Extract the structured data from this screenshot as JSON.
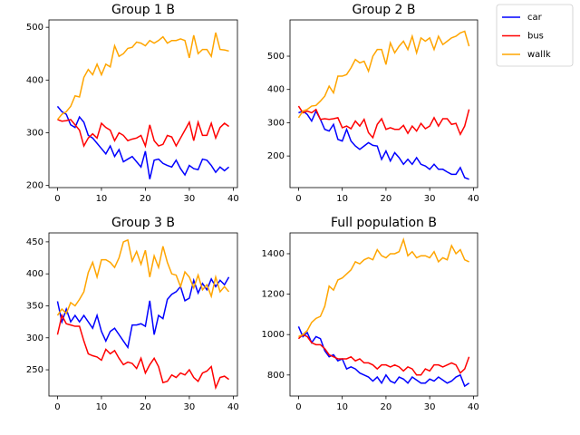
{
  "chart_data": [
    {
      "type": "line",
      "title": "Group 1 B",
      "legend": "outside upper right",
      "x": [
        0,
        1,
        2,
        3,
        4,
        5,
        6,
        7,
        8,
        9,
        10,
        11,
        12,
        13,
        14,
        15,
        16,
        17,
        18,
        19,
        20,
        21,
        22,
        23,
        24,
        25,
        26,
        27,
        28,
        29,
        30,
        31,
        32,
        33,
        34,
        35,
        36,
        37,
        38,
        39
      ],
      "xlim": [
        -1.95,
        40.95
      ],
      "xticks": [
        0,
        10,
        20,
        30,
        40
      ],
      "ylim": [
        196,
        514
      ],
      "yticks": [
        200,
        300,
        400,
        500
      ],
      "series": [
        {
          "name": "car",
          "color": "#0000ff",
          "values": [
            350,
            340,
            335,
            315,
            310,
            330,
            320,
            295,
            290,
            280,
            270,
            260,
            275,
            255,
            268,
            245,
            250,
            255,
            245,
            235,
            265,
            212,
            248,
            250,
            242,
            238,
            235,
            248,
            232,
            220,
            238,
            232,
            230,
            250,
            248,
            238,
            225,
            235,
            228,
            235
          ]
        },
        {
          "name": "bus",
          "color": "#ff0000",
          "values": [
            325,
            322,
            323,
            325,
            315,
            305,
            275,
            290,
            298,
            290,
            318,
            310,
            305,
            285,
            300,
            295,
            285,
            288,
            290,
            295,
            275,
            315,
            285,
            275,
            278,
            295,
            292,
            275,
            290,
            305,
            320,
            285,
            320,
            295,
            295,
            318,
            290,
            310,
            318,
            312
          ]
        },
        {
          "name": "wallk",
          "color": "#ffa500",
          "values": [
            325,
            335,
            340,
            350,
            370,
            368,
            405,
            420,
            410,
            430,
            410,
            430,
            425,
            465,
            445,
            450,
            460,
            462,
            472,
            470,
            465,
            475,
            470,
            475,
            482,
            470,
            475,
            475,
            478,
            475,
            442,
            485,
            450,
            458,
            458,
            445,
            490,
            458,
            457,
            455
          ]
        }
      ]
    },
    {
      "type": "line",
      "title": "Group 2 B",
      "x": [
        0,
        1,
        2,
        3,
        4,
        5,
        6,
        7,
        8,
        9,
        10,
        11,
        12,
        13,
        14,
        15,
        16,
        17,
        18,
        19,
        20,
        21,
        22,
        23,
        24,
        25,
        26,
        27,
        28,
        29,
        30,
        31,
        32,
        33,
        34,
        35,
        36,
        37,
        38,
        39
      ],
      "xlim": [
        -1.95,
        40.95
      ],
      "xticks": [
        0,
        10,
        20,
        30,
        40
      ],
      "ylim": [
        105,
        609
      ],
      "yticks": [
        200,
        300,
        400,
        500
      ],
      "series": [
        {
          "color": "#0000ff",
          "values": [
            330,
            335,
            325,
            305,
            335,
            310,
            280,
            275,
            295,
            250,
            245,
            280,
            245,
            230,
            220,
            230,
            240,
            232,
            230,
            190,
            215,
            185,
            210,
            195,
            175,
            190,
            175,
            195,
            175,
            170,
            160,
            175,
            160,
            160,
            152,
            145,
            145,
            165,
            135,
            130
          ]
        },
        {
          "color": "#ff0000",
          "values": [
            350,
            330,
            335,
            330,
            340,
            310,
            312,
            310,
            312,
            315,
            285,
            290,
            282,
            305,
            290,
            310,
            270,
            255,
            295,
            312,
            280,
            285,
            280,
            280,
            292,
            268,
            290,
            275,
            298,
            282,
            290,
            315,
            290,
            312,
            312,
            295,
            298,
            265,
            290,
            340
          ]
        },
        {
          "color": "#ffa500",
          "values": [
            315,
            335,
            340,
            350,
            352,
            365,
            380,
            410,
            390,
            440,
            440,
            445,
            465,
            490,
            480,
            485,
            455,
            500,
            520,
            520,
            475,
            540,
            510,
            530,
            545,
            520,
            560,
            510,
            555,
            545,
            555,
            520,
            560,
            535,
            545,
            555,
            560,
            570,
            575,
            530
          ]
        }
      ]
    },
    {
      "type": "line",
      "title": "Group 3 B",
      "x": [
        0,
        1,
        2,
        3,
        4,
        5,
        6,
        7,
        8,
        9,
        10,
        11,
        12,
        13,
        14,
        15,
        16,
        17,
        18,
        19,
        20,
        21,
        22,
        23,
        24,
        25,
        26,
        27,
        28,
        29,
        30,
        31,
        32,
        33,
        34,
        35,
        36,
        37,
        38,
        39
      ],
      "xlim": [
        -1.95,
        40.95
      ],
      "xticks": [
        0,
        10,
        20,
        30,
        40
      ],
      "ylim": [
        209,
        464
      ],
      "yticks": [
        250,
        300,
        350,
        400,
        450
      ],
      "series": [
        {
          "color": "#0000ff",
          "values": [
            357,
            325,
            345,
            325,
            335,
            325,
            335,
            325,
            315,
            335,
            310,
            295,
            310,
            315,
            305,
            295,
            285,
            320,
            320,
            322,
            318,
            358,
            305,
            335,
            330,
            360,
            368,
            372,
            380,
            358,
            362,
            390,
            370,
            385,
            375,
            392,
            380,
            390,
            383,
            395
          ]
        },
        {
          "color": "#ff0000",
          "values": [
            305,
            335,
            322,
            320,
            318,
            318,
            295,
            275,
            272,
            270,
            265,
            282,
            275,
            280,
            268,
            258,
            262,
            260,
            252,
            268,
            245,
            258,
            268,
            255,
            230,
            232,
            242,
            238,
            245,
            242,
            250,
            238,
            232,
            245,
            248,
            255,
            222,
            238,
            240,
            235
          ]
        },
        {
          "color": "#ffa500",
          "values": [
            335,
            345,
            338,
            355,
            350,
            360,
            372,
            402,
            418,
            395,
            422,
            422,
            418,
            410,
            425,
            450,
            453,
            420,
            435,
            415,
            437,
            395,
            428,
            410,
            443,
            418,
            400,
            398,
            380,
            403,
            395,
            378,
            398,
            375,
            383,
            365,
            395,
            372,
            380,
            372
          ]
        }
      ]
    },
    {
      "type": "line",
      "title": "Full population B",
      "x": [
        0,
        1,
        2,
        3,
        4,
        5,
        6,
        7,
        8,
        9,
        10,
        11,
        12,
        13,
        14,
        15,
        16,
        17,
        18,
        19,
        20,
        21,
        22,
        23,
        24,
        25,
        26,
        27,
        28,
        29,
        30,
        31,
        32,
        33,
        34,
        35,
        36,
        37,
        38,
        39
      ],
      "xlim": [
        -1.95,
        40.95
      ],
      "xticks": [
        0,
        10,
        20,
        30,
        40
      ],
      "ylim": [
        696,
        1503
      ],
      "yticks": [
        800,
        1000,
        1200,
        1400
      ],
      "series": [
        {
          "color": "#0000ff",
          "values": [
            1040,
            990,
            1010,
            960,
            990,
            980,
            920,
            890,
            900,
            870,
            880,
            830,
            840,
            830,
            810,
            800,
            790,
            770,
            790,
            760,
            800,
            770,
            760,
            790,
            780,
            760,
            790,
            775,
            760,
            760,
            780,
            770,
            790,
            775,
            760,
            770,
            790,
            800,
            745,
            760
          ]
        },
        {
          "color": "#ff0000",
          "values": [
            980,
            1000,
            990,
            960,
            950,
            950,
            930,
            900,
            890,
            880,
            880,
            880,
            890,
            870,
            880,
            860,
            860,
            850,
            830,
            850,
            850,
            840,
            850,
            840,
            820,
            840,
            830,
            800,
            800,
            830,
            820,
            850,
            850,
            840,
            850,
            860,
            850,
            810,
            830,
            890
          ]
        },
        {
          "color": "#ffa500",
          "values": [
            990,
            1000,
            1020,
            1060,
            1080,
            1090,
            1140,
            1240,
            1220,
            1270,
            1280,
            1300,
            1320,
            1360,
            1350,
            1370,
            1380,
            1370,
            1420,
            1390,
            1380,
            1400,
            1400,
            1410,
            1470,
            1390,
            1410,
            1380,
            1390,
            1390,
            1380,
            1410,
            1360,
            1380,
            1370,
            1440,
            1400,
            1420,
            1370,
            1360
          ]
        }
      ]
    }
  ]
}
